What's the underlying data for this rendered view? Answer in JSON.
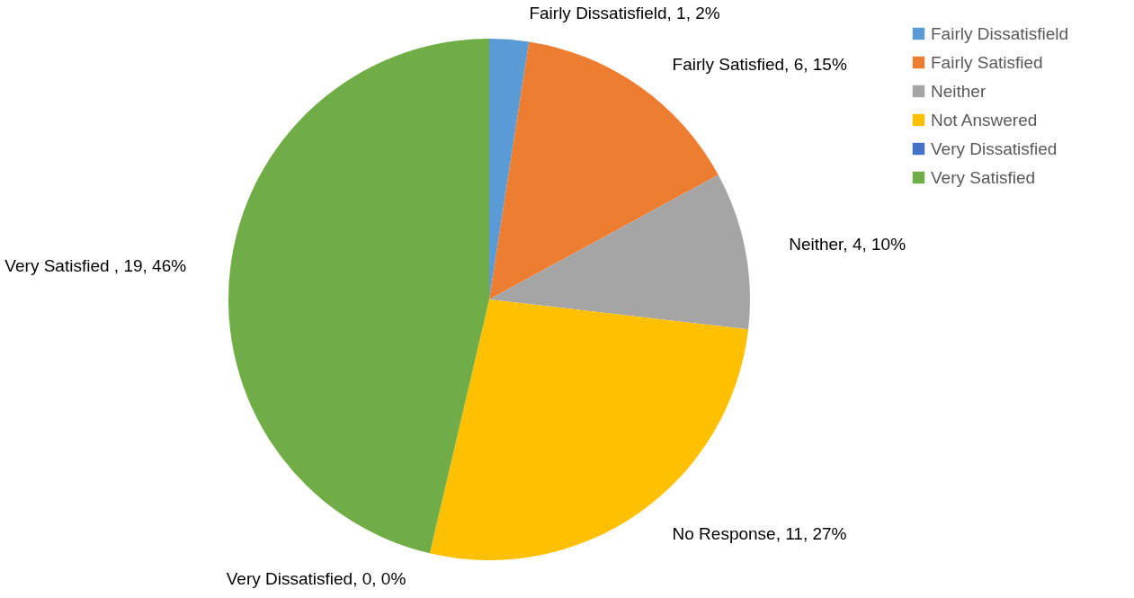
{
  "chart_data": {
    "type": "pie",
    "categories": [
      "Fairly Dissatisfield",
      "Fairly Satisfied",
      "Neither",
      "Not Answered",
      "Very Dissatisfied",
      "Very Satisfied"
    ],
    "values": [
      1,
      6,
      4,
      11,
      0,
      19
    ],
    "colors": [
      "#5b9bd5",
      "#ed7d31",
      "#a5a5a5",
      "#ffc000",
      "#4472c4",
      "#70ad47"
    ],
    "value_labels": [
      "Fairly Dissatisfield, 1, 2%",
      "Fairly Satisfied, 6, 15%",
      "Neither, 4, 10%",
      "No Response, 11, 27%",
      "Very Dissatisfied, 0, 0%",
      "Very Satisfied , 19, 46%"
    ],
    "legend": "right"
  }
}
